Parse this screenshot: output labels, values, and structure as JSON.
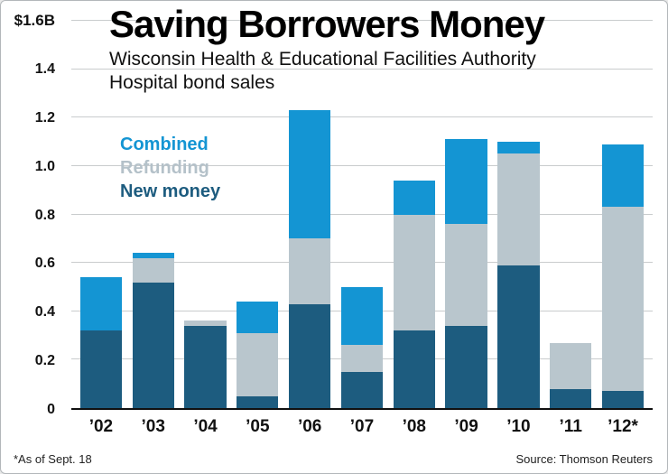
{
  "title": "Saving Borrowers Money",
  "subtitle_line1": "Wisconsin Health & Educational Facilities Authority",
  "subtitle_line2": "Hospital bond sales",
  "footnote": "*As of Sept. 18",
  "source": "Source: Thomson Reuters",
  "colors": {
    "combined": "#1495d3",
    "refunding": "#b9c6cd",
    "new_money": "#1d5c7f",
    "gridline": "#c9cccd",
    "axis": "#111111"
  },
  "legend": [
    {
      "label": "Combined",
      "color": "#1495d3"
    },
    {
      "label": "Refunding",
      "color": "#b4c1c9"
    },
    {
      "label": "New money",
      "color": "#1d5c7f"
    }
  ],
  "chart_data": {
    "type": "bar",
    "stacked": true,
    "title": "Saving Borrowers Money",
    "subtitle": "Wisconsin Health & Educational Facilities Authority Hospital bond sales",
    "unit": "$B",
    "categories": [
      "’02",
      "’03",
      "’04",
      "’05",
      "’06",
      "’07",
      "’08",
      "’09",
      "’10",
      "’11",
      "’12*"
    ],
    "series": [
      {
        "name": "New money",
        "color": "#1d5c7f",
        "values": [
          0.32,
          0.52,
          0.34,
          0.05,
          0.43,
          0.15,
          0.32,
          0.34,
          0.59,
          0.08,
          0.07
        ]
      },
      {
        "name": "Refunding",
        "color": "#b9c6cd",
        "values": [
          0.0,
          0.1,
          0.02,
          0.26,
          0.27,
          0.11,
          0.48,
          0.42,
          0.46,
          0.19,
          0.76
        ]
      },
      {
        "name": "Combined",
        "color": "#1495d3",
        "values": [
          0.22,
          0.02,
          0.0,
          0.13,
          0.53,
          0.24,
          0.14,
          0.35,
          0.05,
          0.0,
          0.26
        ]
      }
    ],
    "ylim": [
      0,
      1.6
    ],
    "ytick_step": 0.2,
    "ytick_labels": [
      "0",
      "0.2",
      "0.4",
      "0.6",
      "0.8",
      "1.0",
      "1.2",
      "1.4",
      "$1.6B"
    ],
    "grid": "horizontal",
    "legend_position": "upper-left-inside"
  }
}
